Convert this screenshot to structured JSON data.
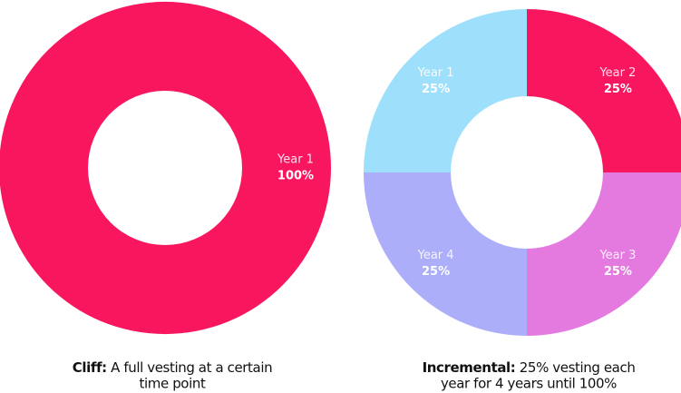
{
  "chart_data": [
    {
      "type": "donut",
      "categories": [
        "Year 1"
      ],
      "values": [
        100
      ],
      "value_labels": [
        "100%"
      ],
      "colors": [
        "#f8165f"
      ],
      "caption_bold": "Cliff:",
      "caption_lines": [
        "A full vesting at a certain",
        "time point"
      ]
    },
    {
      "type": "donut",
      "categories": [
        "Year 1",
        "Year 2",
        "Year 3",
        "Year 4"
      ],
      "values": [
        25,
        25,
        25,
        25
      ],
      "value_labels": [
        "25%",
        "25%",
        "25%",
        "25%"
      ],
      "colors": [
        "#9edffb",
        "#f8165f",
        "#e47ae0",
        "#adaefa"
      ],
      "caption_bold": "Incremental:",
      "caption_lines": [
        "25% vesting each",
        "year for 4 years until 100%"
      ]
    }
  ]
}
